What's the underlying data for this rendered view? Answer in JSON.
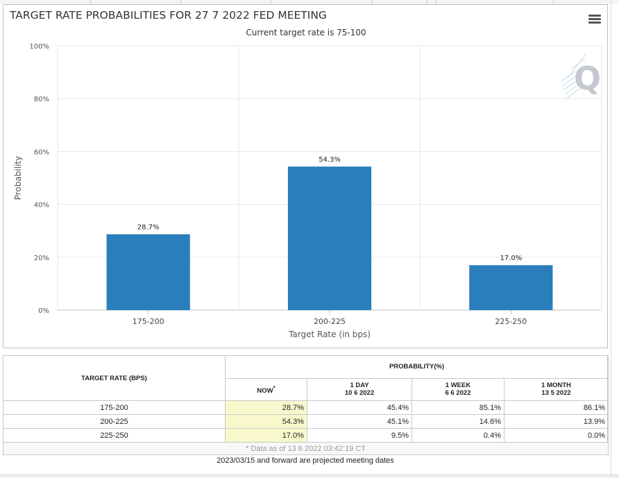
{
  "chart_data": {
    "type": "bar",
    "title": "TARGET RATE PROBABILITIES FOR 27 7 2022 FED MEETING",
    "subtitle": "Current target rate is 75-100",
    "xlabel": "Target Rate (in bps)",
    "ylabel": "Probability",
    "categories": [
      "175-200",
      "200-225",
      "225-250"
    ],
    "values": [
      28.7,
      54.3,
      17.0
    ],
    "data_labels": [
      "28.7%",
      "54.3%",
      "17.0%"
    ],
    "ylim": [
      0,
      100
    ],
    "yticks": [
      "0%",
      "20%",
      "40%",
      "60%",
      "80%",
      "100%"
    ],
    "ytick_values": [
      0,
      20,
      40,
      60,
      80,
      100
    ],
    "bar_color": "#2a7ebb",
    "grid": true,
    "legend": "none"
  },
  "watermark": {
    "icon": "q-logo-icon",
    "letter": "Q"
  },
  "menu": {
    "icon": "hamburger-menu-icon"
  },
  "table": {
    "rate_header": "TARGET RATE (BPS)",
    "prob_header": "PROBABILITY(%)",
    "columns": [
      {
        "label": "NOW",
        "sup": "*",
        "date": ""
      },
      {
        "label": "1 DAY",
        "sup": "",
        "date": "10 6 2022"
      },
      {
        "label": "1 WEEK",
        "sup": "",
        "date": "6 6 2022"
      },
      {
        "label": "1 MONTH",
        "sup": "",
        "date": "13 5 2022"
      }
    ],
    "rows": [
      {
        "rate": "175-200",
        "values": [
          "28.7%",
          "45.4%",
          "85.1%",
          "86.1%"
        ]
      },
      {
        "rate": "200-225",
        "values": [
          "54.3%",
          "45.1%",
          "14.6%",
          "13.9%"
        ]
      },
      {
        "rate": "225-250",
        "values": [
          "17.0%",
          "9.5%",
          "0.4%",
          "0.0%"
        ]
      }
    ],
    "footnote": "* Data as of 13 6 2022 03:42:19 CT"
  },
  "projected_note": "2023/03/15 and forward are projected meeting dates",
  "colors": {
    "accent": "#2a7ebb",
    "now_highlight": "#f8f8cc"
  }
}
